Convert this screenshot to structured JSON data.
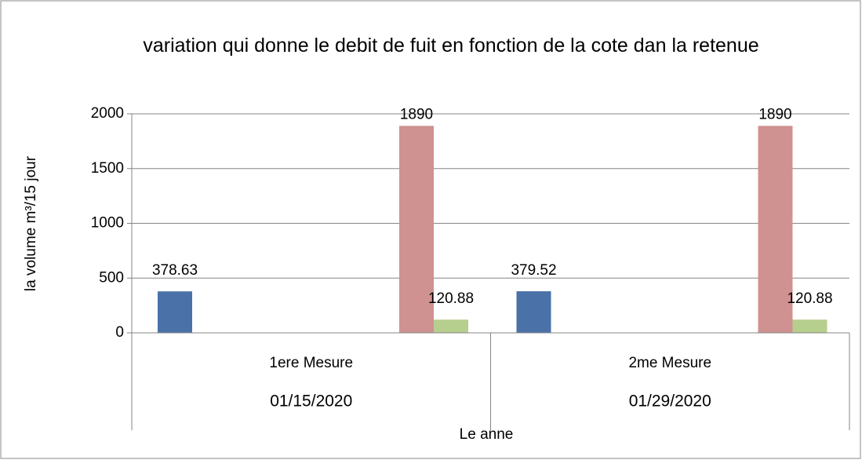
{
  "chart_data": {
    "type": "bar",
    "title": "variation qui donne le debit de fuit en fonction de la cote dan la retenue",
    "y_label": "la volume  m³/15 jour",
    "x_label": "Le anne",
    "categories": [
      "1ere Mesure",
      "2me Mesure"
    ],
    "dates": [
      "01/15/2020",
      "01/29/2020"
    ],
    "series": [
      {
        "color": "#4a72a8",
        "values": [
          378.63,
          379.52
        ]
      },
      {
        "color": "#d09191",
        "values": [
          1890,
          1890
        ]
      },
      {
        "color": "#b6cf8f",
        "values": [
          120.88,
          120.88
        ]
      }
    ],
    "ylim": [
      0,
      2000
    ],
    "yticks": [
      0,
      500,
      1000,
      1500,
      2000
    ],
    "grid": true
  }
}
